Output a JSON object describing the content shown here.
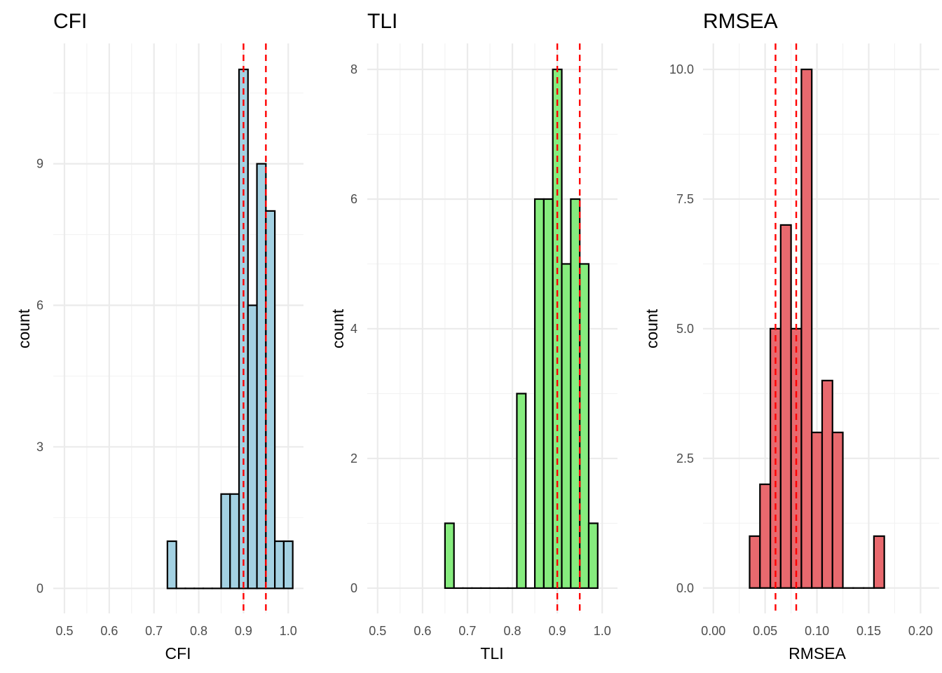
{
  "chart_data": [
    {
      "type": "bar",
      "subtype": "histogram",
      "title": "CFI",
      "xlabel": "CFI",
      "ylabel": "count",
      "fill": "#A3D1E2",
      "xlim": [
        0.475,
        1.034
      ],
      "ylim": [
        -0.53,
        11.55
      ],
      "xticks": [
        0.5,
        0.6,
        0.7,
        0.8,
        0.9,
        1.0
      ],
      "xtick_labels": [
        "0.5",
        "0.6",
        "0.7",
        "0.8",
        "0.9",
        "1.0"
      ],
      "yticks": [
        0,
        3,
        6,
        9
      ],
      "ytick_labels": [
        "0",
        "3",
        "6",
        "9"
      ],
      "bin_start": 0.73,
      "bin_width": 0.02,
      "counts": [
        1,
        0,
        0,
        0,
        0,
        0,
        2,
        2,
        11,
        6,
        9,
        8,
        1,
        1
      ],
      "reference_lines": [
        0.9,
        0.95
      ],
      "reference_line_color": "#FF0000",
      "grid": true
    },
    {
      "type": "bar",
      "subtype": "histogram",
      "title": "TLI",
      "xlabel": "TLI",
      "ylabel": "count",
      "fill": "#86EC7E",
      "xlim": [
        0.477,
        1.034
      ],
      "ylim": [
        -0.39,
        8.4
      ],
      "xticks": [
        0.5,
        0.6,
        0.7,
        0.8,
        0.9,
        1.0
      ],
      "xtick_labels": [
        "0.5",
        "0.6",
        "0.7",
        "0.8",
        "0.9",
        "1.0"
      ],
      "yticks": [
        0,
        2,
        4,
        6,
        8
      ],
      "ytick_labels": [
        "0",
        "2",
        "4",
        "6",
        "8"
      ],
      "bin_start": 0.65,
      "bin_width": 0.02,
      "counts": [
        1,
        0,
        0,
        0,
        0,
        0,
        0,
        0,
        3,
        0,
        6,
        6,
        8,
        5,
        6,
        5,
        1
      ],
      "reference_lines": [
        0.9,
        0.95
      ],
      "reference_line_color": "#FF0000",
      "grid": true
    },
    {
      "type": "bar",
      "subtype": "histogram",
      "title": "RMSEA",
      "xlabel": "RMSEA",
      "ylabel": "count",
      "fill": "#E8696E",
      "xlim": [
        -0.01,
        0.218
      ],
      "ylim": [
        -0.49,
        10.5
      ],
      "xticks": [
        0.0,
        0.05,
        0.1,
        0.15,
        0.2
      ],
      "xtick_labels": [
        "0.00",
        "0.05",
        "0.10",
        "0.15",
        "0.20"
      ],
      "yticks": [
        0,
        2.5,
        5,
        7.5,
        10
      ],
      "ytick_labels": [
        "0.0",
        "2.5",
        "5.0",
        "7.5",
        "10.0"
      ],
      "bin_start": 0.035,
      "bin_width": 0.01,
      "counts": [
        1,
        2,
        5,
        7,
        5,
        10,
        3,
        4,
        3,
        0,
        0,
        0,
        1
      ],
      "reference_lines": [
        0.06,
        0.08
      ],
      "reference_line_color": "#FF0000",
      "grid": true
    }
  ]
}
